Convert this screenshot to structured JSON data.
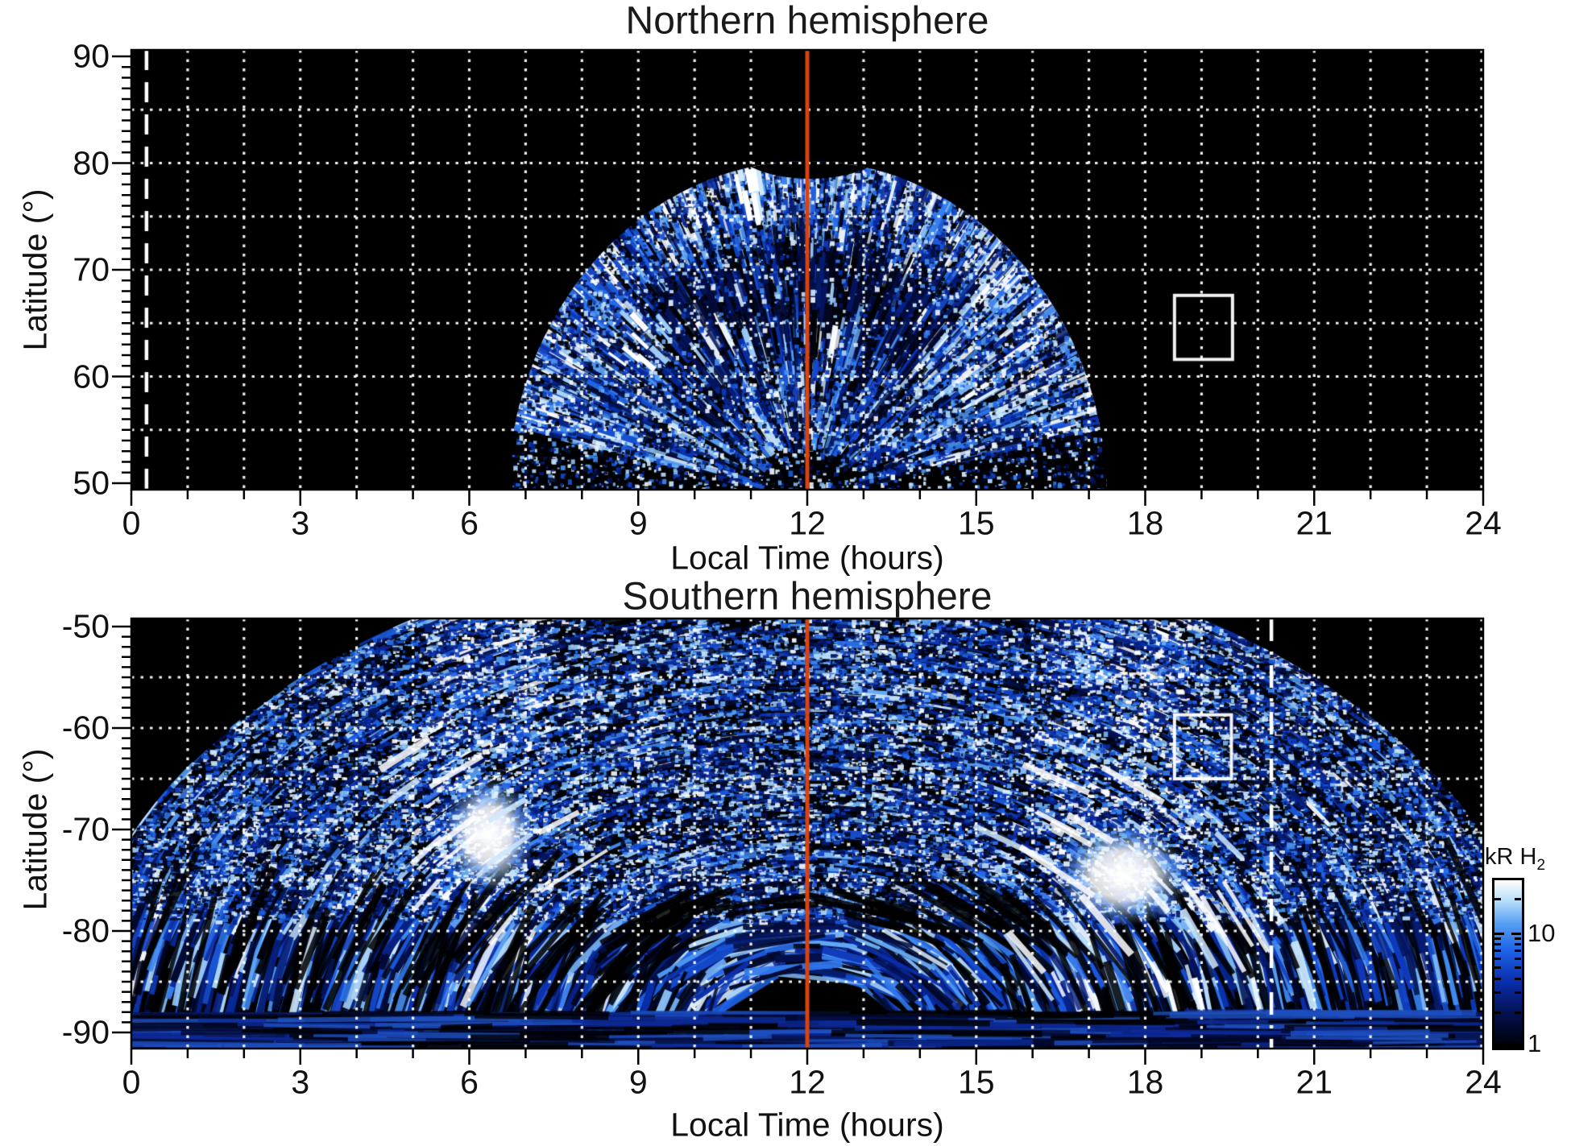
{
  "figure": {
    "background": "#ffffff"
  },
  "colors": {
    "plot_background": "#000000",
    "grid": "#ffffff",
    "axis": "#000000",
    "noon_line_red": "#d9430e",
    "reference_line_white": "#ffffff",
    "roi_box": "#ffffff",
    "palette_stops": [
      {
        "t": 0.0,
        "c": "#000000"
      },
      {
        "t": 0.2,
        "c": "#03104f"
      },
      {
        "t": 0.4,
        "c": "#0a2fae"
      },
      {
        "t": 0.58,
        "c": "#1d62e8"
      },
      {
        "t": 0.74,
        "c": "#549ff2"
      },
      {
        "t": 0.87,
        "c": "#b3dbfa"
      },
      {
        "t": 1.0,
        "c": "#ffffff"
      }
    ]
  },
  "north": {
    "title": "Northern hemisphere",
    "xlabel": "Local Time (hours)",
    "ylabel": "Latitude (°)",
    "x_tick_values": [
      0,
      3,
      6,
      9,
      12,
      15,
      18,
      21,
      24
    ],
    "x_tick_labels": [
      "0",
      "3",
      "6",
      "9",
      "12",
      "15",
      "18",
      "21",
      "24"
    ],
    "y_tick_values": [
      90,
      80,
      70,
      60,
      50
    ],
    "y_tick_labels": [
      "90",
      "80",
      "70",
      "60",
      "50"
    ],
    "xlim": [
      0,
      24
    ],
    "ylim": [
      90,
      50
    ],
    "grid_x_step_hours": 1,
    "grid_y_step_deg": 5,
    "reference_lines": [
      {
        "style": "solid",
        "color": "red",
        "hour": 12
      },
      {
        "style": "dashed",
        "color": "white",
        "hour": 0.27
      }
    ],
    "roi_box": {
      "hour_min": 18.52,
      "hour_max": 19.55,
      "lat_min": 61.6,
      "lat_max": 67.6
    }
  },
  "south": {
    "title": "Southern hemisphere",
    "xlabel": "Local Time (hours)",
    "ylabel": "Latitude (°)",
    "x_tick_values": [
      0,
      3,
      6,
      9,
      12,
      15,
      18,
      21,
      24
    ],
    "x_tick_labels": [
      "0",
      "3",
      "6",
      "9",
      "12",
      "15",
      "18",
      "21",
      "24"
    ],
    "y_tick_values": [
      -50,
      -60,
      -70,
      -80,
      -90
    ],
    "y_tick_labels": [
      "-50",
      "-60",
      "-70",
      "-80",
      "-90"
    ],
    "xlim": [
      0,
      24
    ],
    "ylim": [
      -50,
      -90
    ],
    "grid_x_step_hours": 1,
    "grid_y_step_deg": 5,
    "reference_lines": [
      {
        "style": "solid",
        "color": "red",
        "hour": 12
      },
      {
        "style": "dashdot",
        "color": "white",
        "hour": 20.24
      }
    ],
    "roi_box": {
      "hour_min": 18.52,
      "hour_max": 19.53,
      "lat_min": -65.0,
      "lat_max": -58.7
    }
  },
  "colorbar": {
    "title_main": "kR H",
    "title_sub": "2",
    "scale": "log",
    "min": 1,
    "max": 30,
    "tick_labels": [
      {
        "value": 10,
        "label": "10"
      },
      {
        "value": 1,
        "label": "1"
      }
    ],
    "minor_tick_values": [
      2,
      3,
      4,
      5,
      6,
      7,
      8,
      9,
      20
    ]
  },
  "chart_data": {
    "type": "heatmap",
    "quantity": "H2 auroral emission brightness, speckled observational maps vs local time and latitude",
    "units": "kR H2",
    "color_scale": {
      "type": "log",
      "min": 1,
      "max": 30,
      "low_color": "black",
      "high_color": "white"
    },
    "panels": [
      {
        "title": "Northern hemisphere",
        "x_range_hours": [
          0,
          24
        ],
        "lat_range_deg": [
          50,
          90
        ],
        "gridlines": {
          "x_every_hours": 1,
          "y_every_deg": 5,
          "style": "white dotted"
        },
        "features": [
          {
            "kind": "emission_fan",
            "description": "dome/fan of speckled blue-white emission centred on 12 h",
            "hours_at_lat50": [
              7.0,
              17.2
            ],
            "hours_at_apex": [
              11.0,
              13.5
            ],
            "lat_apex": 79.5,
            "typical_kR": "1-15"
          },
          {
            "kind": "dark_band",
            "description": "dark low-emission arc inside fan",
            "hours": [
              9.5,
              14.5
            ],
            "lats": [
              63,
              69
            ],
            "typical_kR": "<1"
          },
          {
            "kind": "bright_streak",
            "description": "white saturated streak",
            "hours": [
              10.8,
              11.3
            ],
            "lats": [
              74,
              78.5
            ],
            "typical_kR": ">30"
          },
          {
            "kind": "bright_cluster",
            "description": "bright radial streaks on dawn rim",
            "hours": [
              8.8,
              9.6
            ],
            "lats": [
              61,
              66
            ],
            "typical_kR": "20-30"
          },
          {
            "kind": "texture",
            "description": "radial streaks fanning from pole with dense blue/black speckle"
          }
        ],
        "reference_lines": [
          {
            "style": "solid red",
            "hour": 12
          },
          {
            "style": "white dashed",
            "hour": 0.27
          }
        ],
        "roi_box": {
          "hours": [
            18.52,
            19.55
          ],
          "lats": [
            61.6,
            67.6
          ]
        }
      },
      {
        "title": "Southern hemisphere",
        "x_range_hours": [
          0,
          24
        ],
        "lat_range_deg": [
          -90,
          -50
        ],
        "gridlines": {
          "x_every_hours": 1,
          "y_every_deg": 5,
          "style": "white dotted"
        },
        "features": [
          {
            "kind": "emission_region",
            "description": "speckled emission spanning 4.5-19.5 h at -50, widening to full 0-24 h below -80",
            "hours_at_minus50": [
              4.8,
              19.2
            ],
            "full_width_below_lat": -78
          },
          {
            "kind": "bright_spot",
            "description": "saturated white dawn-side blob",
            "hour": 6.35,
            "lat": -70.5,
            "hour_extent": 1.7,
            "lat_extent": 6,
            "typical_kR": ">30"
          },
          {
            "kind": "bright_spot",
            "description": "saturated white dusk-side blob with bright arcs",
            "hour": 17.6,
            "lat": -74.5,
            "hour_extent": 2.4,
            "lat_extent": 6,
            "typical_kR": ">30"
          },
          {
            "kind": "banded_arcs",
            "description": "long smooth blue arcs concentric about the pole",
            "lats": [
              -78,
              -88
            ]
          },
          {
            "kind": "dim_band",
            "description": "dark navy band along bottom",
            "lats": [
              -88,
              -90
            ],
            "typical_kR": "1-2"
          },
          {
            "kind": "texture",
            "description": "tangential arc streaks and dense speckle, brighter columns near 6.4 h and 17.6 h"
          }
        ],
        "reference_lines": [
          {
            "style": "solid red",
            "hour": 12
          },
          {
            "style": "white dash-dot",
            "hour": 20.24
          }
        ],
        "roi_box": {
          "hours": [
            18.52,
            19.53
          ],
          "lats": [
            -65.0,
            -58.7
          ]
        }
      }
    ]
  }
}
